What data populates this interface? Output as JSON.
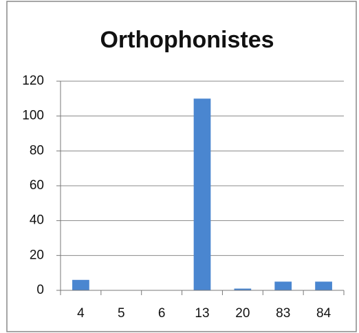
{
  "chart_data": {
    "type": "bar",
    "title": "Orthophonistes",
    "categories": [
      "4",
      "5",
      "6",
      "13",
      "20",
      "83",
      "84"
    ],
    "values": [
      6,
      0,
      0,
      110,
      1,
      5,
      5
    ],
    "color": "#4a86d0",
    "ylim": [
      0,
      120
    ],
    "yticks": [
      0,
      20,
      40,
      60,
      80,
      100,
      120
    ],
    "grid": true
  }
}
